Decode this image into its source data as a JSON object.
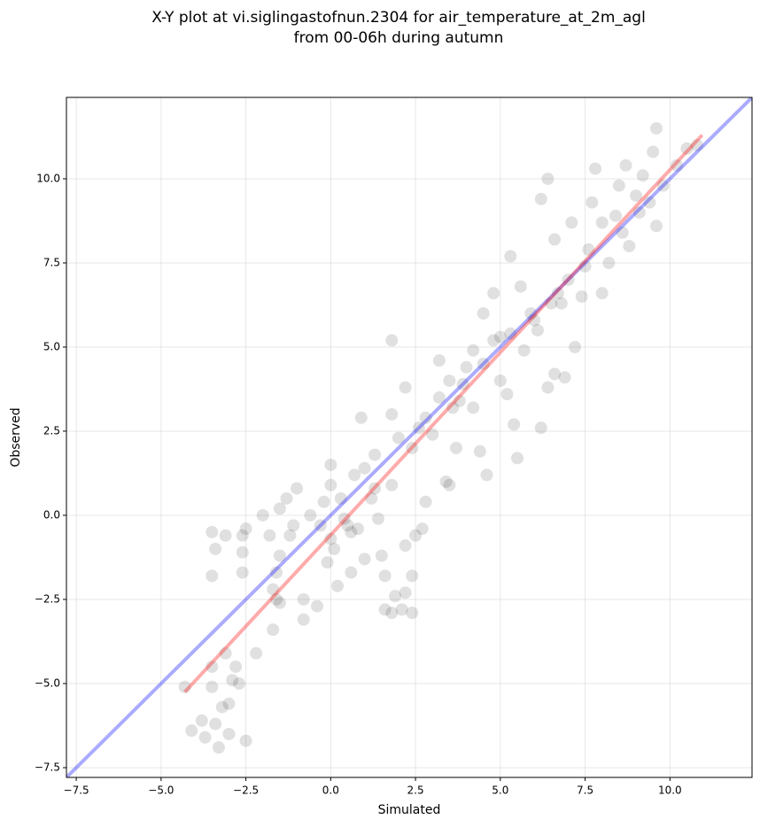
{
  "chart_data": {
    "type": "scatter",
    "title": "X-Y plot at vi.siglingastofnun.2304 for air_temperature_at_2m_agl",
    "subtitle": "from 00-06h during autumn",
    "xlabel": "Simulated",
    "ylabel": "Observed",
    "xlim": [
      -7.79,
      12.42
    ],
    "ylim": [
      -7.79,
      12.42
    ],
    "xticks": [
      {
        "value": -7.5,
        "label": "−7.5"
      },
      {
        "value": -5.0,
        "label": "−5.0"
      },
      {
        "value": -2.5,
        "label": "−2.5"
      },
      {
        "value": 0.0,
        "label": "0.0"
      },
      {
        "value": 2.5,
        "label": "2.5"
      },
      {
        "value": 5.0,
        "label": "5.0"
      },
      {
        "value": 7.5,
        "label": "7.5"
      },
      {
        "value": 10.0,
        "label": "10.0"
      }
    ],
    "yticks": [
      {
        "value": -7.5,
        "label": "−7.5"
      },
      {
        "value": -5.0,
        "label": "−5.0"
      },
      {
        "value": -2.5,
        "label": "−2.5"
      },
      {
        "value": 0.0,
        "label": "0.0"
      },
      {
        "value": 2.5,
        "label": "2.5"
      },
      {
        "value": 5.0,
        "label": "5.0"
      },
      {
        "value": 7.5,
        "label": "7.5"
      },
      {
        "value": 10.0,
        "label": "10.0"
      }
    ],
    "grid": true,
    "points": {
      "color": "#000000",
      "alpha": 0.12,
      "x": [
        -4.3,
        -4.1,
        -3.8,
        -3.7,
        -3.3,
        -3.4,
        -3.2,
        -3.0,
        -3.0,
        -2.9,
        -2.7,
        -2.5,
        -2.2,
        -3.1,
        -2.8,
        -3.5,
        -3.5,
        -3.5,
        -3.5,
        -3.4,
        -3.1,
        -2.6,
        -2.6,
        -2.5,
        -2.6,
        -2.0,
        -1.8,
        -1.7,
        -1.6,
        -1.5,
        -1.7,
        -1.6,
        -1.5,
        -1.2,
        -1.5,
        -1.3,
        -1.0,
        -1.1,
        -0.8,
        -0.8,
        -0.4,
        -0.6,
        -0.3,
        -0.1,
        0.0,
        0.0,
        0.0,
        -0.2,
        0.1,
        0.2,
        0.4,
        0.5,
        0.6,
        0.6,
        0.8,
        0.7,
        0.9,
        1.0,
        1.0,
        1.2,
        1.3,
        1.4,
        1.5,
        1.6,
        1.6,
        1.8,
        1.9,
        2.1,
        2.2,
        2.4,
        2.4,
        2.2,
        2.5,
        2.7,
        2.8,
        1.8,
        2.0,
        2.2,
        1.8,
        2.6,
        3.0,
        3.2,
        3.4,
        3.5,
        3.7,
        3.5,
        3.8,
        4.0,
        4.2,
        4.4,
        4.6,
        4.5,
        4.8,
        5.0,
        5.2,
        5.4,
        5.5,
        5.7,
        5.9,
        6.2,
        6.4,
        6.1,
        6.5,
        6.6,
        6.8,
        6.9,
        7.0,
        7.2,
        7.4,
        7.6,
        7.7,
        7.8,
        8.0,
        8.0,
        8.2,
        8.4,
        8.5,
        8.7,
        8.8,
        9.0,
        9.2,
        9.5,
        9.4,
        9.6,
        9.8,
        10.2,
        10.5,
        10.8,
        9.6,
        6.4,
        6.2,
        5.3,
        4.5,
        1.8,
        4.8,
        3.2,
        6.6,
        7.1,
        5.6,
        2.8,
        3.9,
        5.0,
        5.3,
        6.0,
        6.7,
        7.5,
        8.6,
        9.1,
        4.2,
        3.6,
        2.4,
        1.3,
        0.3
      ],
      "y": [
        -5.1,
        -6.4,
        -6.1,
        -6.6,
        -6.9,
        -6.2,
        -5.7,
        -6.5,
        -5.6,
        -4.9,
        -5.0,
        -6.7,
        -4.1,
        -4.1,
        -4.5,
        -4.5,
        -5.1,
        -1.8,
        -0.5,
        -1.0,
        -0.6,
        -0.6,
        -1.1,
        -0.4,
        -1.7,
        0.0,
        -0.6,
        -2.2,
        -2.5,
        -2.6,
        -3.4,
        -1.7,
        -1.2,
        -0.6,
        0.2,
        0.5,
        0.8,
        -0.3,
        -2.5,
        -3.1,
        -2.7,
        0.0,
        -0.3,
        -1.4,
        -0.7,
        0.9,
        1.5,
        0.4,
        -1.0,
        -2.1,
        -0.1,
        -0.3,
        -0.5,
        -1.7,
        -0.4,
        1.2,
        2.9,
        1.4,
        -1.3,
        0.5,
        1.8,
        -0.1,
        -1.2,
        -1.8,
        -2.8,
        -2.9,
        -2.4,
        -2.8,
        -2.3,
        -2.9,
        -1.8,
        -0.9,
        -0.6,
        -0.4,
        0.4,
        0.9,
        2.3,
        3.8,
        3.0,
        2.6,
        2.4,
        3.5,
        1.0,
        0.9,
        2.0,
        4.0,
        3.4,
        4.4,
        3.2,
        1.9,
        1.2,
        4.5,
        5.2,
        4.0,
        3.6,
        2.7,
        1.7,
        4.9,
        6.0,
        2.6,
        3.8,
        5.5,
        6.3,
        4.2,
        6.3,
        4.1,
        7.0,
        5.0,
        6.5,
        7.9,
        9.3,
        10.3,
        8.7,
        6.6,
        7.5,
        8.9,
        9.8,
        10.4,
        8.0,
        9.5,
        10.1,
        10.8,
        9.3,
        8.6,
        9.8,
        10.4,
        10.9,
        11.0,
        11.5,
        10.0,
        9.4,
        7.7,
        6.0,
        5.2,
        6.6,
        4.6,
        8.2,
        8.7,
        6.8,
        2.9,
        3.9,
        5.3,
        5.4,
        5.8,
        6.6,
        7.4,
        8.4,
        9.0,
        4.9,
        3.2,
        2.0,
        0.8,
        0.5
      ]
    },
    "lines": [
      {
        "color": "#0000ff",
        "alpha": 0.33,
        "x": [
          -7.79,
          12.42
        ],
        "y": [
          -7.79,
          12.42
        ]
      },
      {
        "color": "#ff0000",
        "alpha": 0.33,
        "x": [
          -4.3,
          10.95
        ],
        "y": [
          -5.25,
          11.3
        ]
      }
    ]
  }
}
